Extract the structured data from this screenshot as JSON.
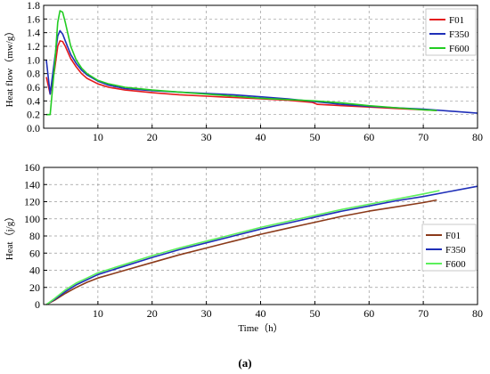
{
  "caption": "(a)",
  "chart_data": [
    {
      "type": "line",
      "xlabel": "",
      "ylabel": "Heat flow（mw/g）",
      "xlim": [
        0,
        80
      ],
      "ylim": [
        0,
        1.8
      ],
      "xticks": [
        10,
        20,
        30,
        40,
        50,
        60,
        70,
        80
      ],
      "yticks": [
        0.0,
        0.2,
        0.4,
        0.6,
        0.8,
        1.0,
        1.2,
        1.4,
        1.6,
        1.8
      ],
      "ytick_labels": [
        "0.0",
        "0.2",
        "0.4",
        "0.6",
        "0.8",
        "1.0",
        "1.2",
        "1.4",
        "1.6",
        "1.8"
      ],
      "grid": true,
      "legend_position": "top-right",
      "series": [
        {
          "name": "F01",
          "color": "#e41a1c",
          "x": [
            0.5,
            1.2,
            2,
            2.6,
            3,
            3.5,
            4,
            5,
            6,
            7,
            8,
            10,
            12,
            15,
            20,
            25,
            30,
            35,
            40,
            45,
            49.5,
            50.5,
            55,
            60,
            65,
            70,
            72.5
          ],
          "y": [
            0.75,
            0.5,
            0.85,
            1.2,
            1.28,
            1.27,
            1.2,
            1.02,
            0.9,
            0.8,
            0.73,
            0.65,
            0.6,
            0.56,
            0.52,
            0.49,
            0.47,
            0.45,
            0.43,
            0.41,
            0.38,
            0.35,
            0.33,
            0.31,
            0.29,
            0.27,
            0.26
          ]
        },
        {
          "name": "F350",
          "color": "#1f2fb8",
          "x": [
            0.5,
            1.2,
            2,
            2.6,
            3,
            3.5,
            4,
            5,
            6,
            7,
            8,
            10,
            12,
            15,
            20,
            25,
            30,
            35,
            40,
            45,
            50,
            55,
            60,
            65,
            70,
            75,
            80
          ],
          "y": [
            1.0,
            0.5,
            1.0,
            1.35,
            1.43,
            1.38,
            1.28,
            1.08,
            0.95,
            0.85,
            0.78,
            0.69,
            0.63,
            0.58,
            0.55,
            0.53,
            0.51,
            0.49,
            0.46,
            0.43,
            0.39,
            0.35,
            0.32,
            0.3,
            0.28,
            0.25,
            0.22
          ]
        },
        {
          "name": "F600",
          "color": "#22cc22",
          "x": [
            0.5,
            1.2,
            2,
            2.6,
            3,
            3.5,
            4,
            5,
            6,
            7,
            8,
            10,
            12,
            15,
            20,
            25,
            30,
            35,
            40,
            45,
            50,
            55,
            60,
            65,
            70,
            72.5
          ],
          "y": [
            0.2,
            0.2,
            0.9,
            1.55,
            1.72,
            1.7,
            1.55,
            1.2,
            1.0,
            0.88,
            0.8,
            0.7,
            0.65,
            0.6,
            0.56,
            0.53,
            0.5,
            0.47,
            0.44,
            0.42,
            0.4,
            0.37,
            0.33,
            0.3,
            0.27,
            0.26
          ]
        }
      ]
    },
    {
      "type": "line",
      "xlabel": "Time（h）",
      "ylabel": "Heat（j/g）",
      "xlim": [
        0,
        80
      ],
      "ylim": [
        0,
        160
      ],
      "xticks": [
        10,
        20,
        30,
        40,
        50,
        60,
        70,
        80
      ],
      "yticks": [
        0,
        20,
        40,
        60,
        80,
        100,
        120,
        140,
        160
      ],
      "ytick_labels": [
        "0",
        "20",
        "40",
        "60",
        "80",
        "100",
        "120",
        "140",
        "160"
      ],
      "grid": true,
      "legend_position": "right",
      "series": [
        {
          "name": "F01",
          "color": "#8b3a1a",
          "x": [
            0.5,
            2,
            4,
            6,
            8,
            10,
            15,
            20,
            25,
            30,
            35,
            40,
            45,
            50,
            55,
            60,
            65,
            70,
            72.5
          ],
          "y": [
            0,
            5,
            13,
            20,
            26,
            31,
            40,
            49,
            58,
            66,
            74,
            82,
            89,
            96,
            103,
            109,
            114,
            119,
            122
          ]
        },
        {
          "name": "F350",
          "color": "#1f2fb8",
          "x": [
            0.5,
            2,
            4,
            6,
            8,
            10,
            15,
            20,
            25,
            30,
            35,
            40,
            45,
            50,
            55,
            60,
            65,
            70,
            75,
            80
          ],
          "y": [
            0,
            6,
            15,
            23,
            29,
            35,
            45,
            55,
            64,
            72,
            80,
            88,
            95,
            102,
            109,
            115,
            121,
            126,
            132,
            138
          ]
        },
        {
          "name": "F600",
          "color": "#5cf05c",
          "x": [
            0.5,
            2,
            4,
            6,
            8,
            10,
            15,
            20,
            25,
            30,
            35,
            40,
            45,
            50,
            55,
            60,
            65,
            70,
            73
          ],
          "y": [
            0,
            7,
            17,
            25,
            31,
            37,
            47,
            57,
            66,
            74,
            82,
            90,
            97,
            104,
            111,
            117,
            123,
            129,
            133
          ]
        }
      ]
    }
  ]
}
